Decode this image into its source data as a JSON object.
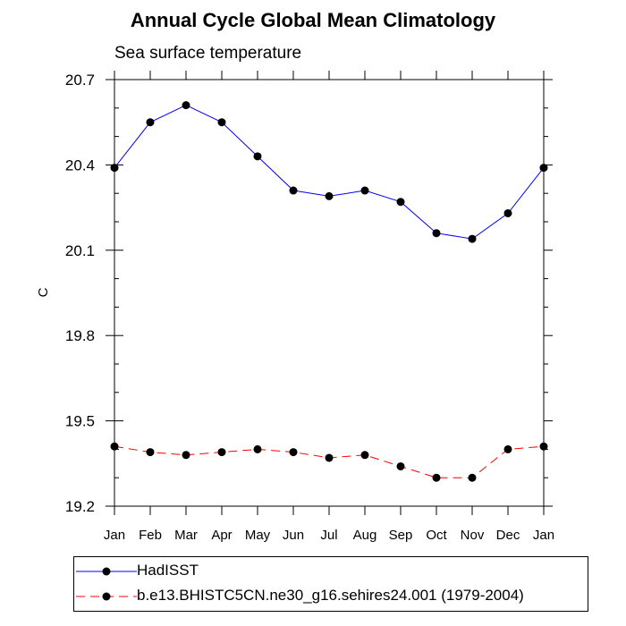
{
  "chart_data": {
    "type": "line",
    "title": "Annual Cycle Global Mean Climatology",
    "subtitle": "Sea surface temperature",
    "xlabel": "",
    "ylabel": "C",
    "categories": [
      "Jan",
      "Feb",
      "Mar",
      "Apr",
      "May",
      "Jun",
      "Jul",
      "Aug",
      "Sep",
      "Oct",
      "Nov",
      "Dec",
      "Jan"
    ],
    "ylim": [
      19.2,
      20.7
    ],
    "yticks": [
      "19.2",
      "19.5",
      "19.8",
      "20.1",
      "20.4",
      "20.7"
    ],
    "grid": false,
    "legend_position": "bottom",
    "series": [
      {
        "name": "HadISST",
        "color": "#0000ff",
        "dash": "solid",
        "values": [
          20.39,
          20.55,
          20.61,
          20.55,
          20.43,
          20.31,
          20.29,
          20.31,
          20.27,
          20.16,
          20.14,
          20.23,
          20.39
        ]
      },
      {
        "name": "b.e13.BHISTC5CN.ne30_g16.sehires24.001 (1979-2004)",
        "color": "#ff0000",
        "dash": "dashed",
        "values": [
          19.41,
          19.39,
          19.38,
          19.39,
          19.4,
          19.39,
          19.37,
          19.38,
          19.34,
          19.3,
          19.3,
          19.4,
          19.41
        ]
      }
    ]
  }
}
